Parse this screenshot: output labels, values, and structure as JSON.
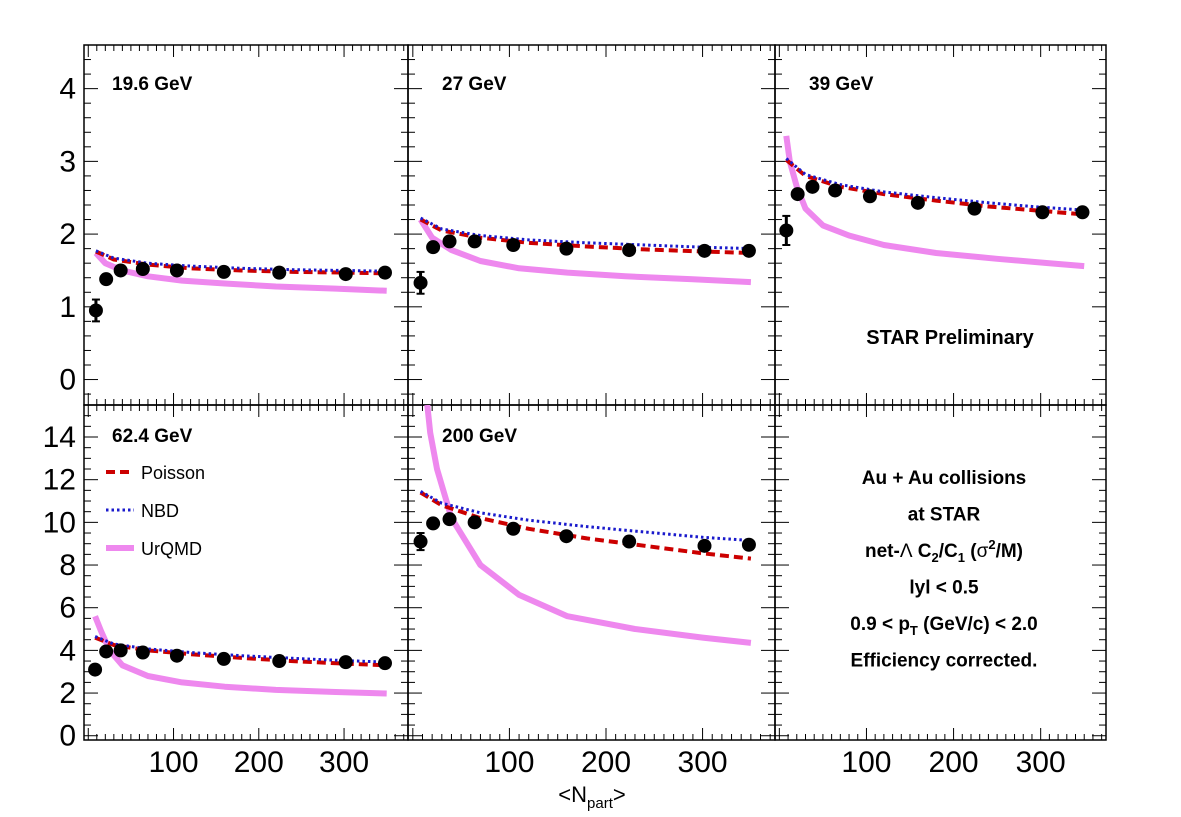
{
  "chart_data": {
    "type": "scatter",
    "xlabel": "<N_part>",
    "xlim": [
      -5,
      375
    ],
    "xticks": [
      100,
      200,
      300
    ],
    "preliminary_label": "STAR Preliminary",
    "legend": {
      "placement": "left, bottom-left panel",
      "entries": [
        {
          "key": "poisson",
          "name": "Poisson",
          "style": "dashed",
          "color": "#cc0000"
        },
        {
          "key": "nbd",
          "name": "NBD",
          "style": "dotted",
          "color": "#1a1acc"
        },
        {
          "key": "urqmd",
          "name": "UrQMD",
          "style": "solid-thick",
          "color": "#ee88ee"
        }
      ]
    },
    "info_lines": [
      {
        "text": "Au + Au collisions"
      },
      {
        "text": "at STAR"
      },
      {
        "pre": "net-",
        "greek": "Λ",
        "text": " C",
        "sub1": "2",
        "mid": "/C",
        "sub2": "1",
        "pre2": " (",
        "greek2": "σ",
        "sup": "2",
        "post": "/M)"
      },
      {
        "text": "lyl < 0.5"
      },
      {
        "pre": "0.9 < p",
        "sub1": "T",
        "post": " (GeV/c) < 2.0"
      },
      {
        "text": "Efficiency corrected."
      }
    ],
    "row_ylims": [
      [
        -0.35,
        4.6
      ],
      [
        -0.2,
        15.5
      ]
    ],
    "row_yticks": [
      [
        0,
        1,
        2,
        3,
        4
      ],
      [
        0,
        2,
        4,
        6,
        8,
        10,
        12,
        14
      ]
    ],
    "colors": {
      "data": "#000000",
      "poisson": "#cc0000",
      "nbd": "#1a1acc",
      "urqmd": "#ee88ee"
    },
    "panels": [
      {
        "label": "19.6 GeV",
        "row": 0,
        "col": 0,
        "data": {
          "x": [
            9,
            21,
            38,
            64,
            104,
            159,
            224,
            302,
            348
          ],
          "y": [
            0.95,
            1.38,
            1.5,
            1.52,
            1.5,
            1.48,
            1.47,
            1.45,
            1.47
          ],
          "yerr": [
            0.15,
            0.04,
            0.04,
            0.03,
            0.03,
            0.03,
            0.03,
            0.03,
            0.03
          ]
        },
        "poisson": {
          "x": [
            9,
            30,
            70,
            120,
            180,
            240,
            300,
            350
          ],
          "y": [
            1.76,
            1.65,
            1.58,
            1.53,
            1.5,
            1.48,
            1.47,
            1.46
          ]
        },
        "nbd": {
          "x": [
            9,
            30,
            70,
            120,
            180,
            240,
            300,
            350
          ],
          "y": [
            1.77,
            1.67,
            1.6,
            1.56,
            1.53,
            1.51,
            1.5,
            1.49
          ]
        },
        "urqmd": {
          "x": [
            9,
            20,
            40,
            70,
            110,
            160,
            220,
            290,
            350
          ],
          "y": [
            1.74,
            1.6,
            1.5,
            1.42,
            1.36,
            1.32,
            1.28,
            1.25,
            1.22
          ]
        }
      },
      {
        "label": "27 GeV",
        "row": 0,
        "col": 1,
        "data": {
          "x": [
            8,
            21,
            38,
            64,
            104,
            159,
            224,
            302,
            348
          ],
          "y": [
            1.33,
            1.82,
            1.9,
            1.9,
            1.85,
            1.8,
            1.78,
            1.77,
            1.77
          ],
          "yerr": [
            0.15,
            0.05,
            0.04,
            0.04,
            0.03,
            0.03,
            0.03,
            0.03,
            0.03
          ]
        },
        "poisson": {
          "x": [
            8,
            30,
            70,
            120,
            180,
            240,
            300,
            350
          ],
          "y": [
            2.2,
            2.05,
            1.95,
            1.88,
            1.83,
            1.79,
            1.76,
            1.74
          ]
        },
        "nbd": {
          "x": [
            8,
            30,
            70,
            120,
            180,
            240,
            300,
            350
          ],
          "y": [
            2.22,
            2.07,
            1.98,
            1.92,
            1.88,
            1.85,
            1.82,
            1.8
          ]
        },
        "urqmd": {
          "x": [
            8,
            20,
            40,
            70,
            110,
            160,
            220,
            290,
            350
          ],
          "y": [
            2.2,
            1.95,
            1.78,
            1.63,
            1.53,
            1.47,
            1.42,
            1.38,
            1.34
          ]
        }
      },
      {
        "label": "39 GeV",
        "row": 0,
        "col": 2,
        "data": {
          "x": [
            8,
            21,
            38,
            64,
            104,
            159,
            224,
            302,
            348
          ],
          "y": [
            2.05,
            2.55,
            2.65,
            2.6,
            2.52,
            2.43,
            2.35,
            2.3,
            2.3
          ],
          "yerr": [
            0.2,
            0.06,
            0.05,
            0.05,
            0.04,
            0.04,
            0.04,
            0.04,
            0.04
          ]
        },
        "poisson": {
          "x": [
            8,
            30,
            70,
            120,
            180,
            240,
            300,
            350
          ],
          "y": [
            3.02,
            2.8,
            2.65,
            2.55,
            2.46,
            2.38,
            2.32,
            2.27
          ]
        },
        "nbd": {
          "x": [
            8,
            30,
            70,
            120,
            180,
            240,
            300,
            350
          ],
          "y": [
            3.04,
            2.82,
            2.68,
            2.58,
            2.5,
            2.43,
            2.37,
            2.33
          ]
        },
        "urqmd": {
          "x": [
            8,
            12,
            20,
            30,
            50,
            80,
            120,
            180,
            250,
            310,
            350
          ],
          "y": [
            3.35,
            3.0,
            2.65,
            2.35,
            2.12,
            1.98,
            1.85,
            1.74,
            1.66,
            1.6,
            1.56
          ]
        }
      },
      {
        "label": "62.4 GeV",
        "row": 1,
        "col": 0,
        "data": {
          "x": [
            8,
            21,
            38,
            64,
            104,
            159,
            224,
            302,
            348
          ],
          "y": [
            3.1,
            3.95,
            4.0,
            3.9,
            3.75,
            3.6,
            3.5,
            3.45,
            3.4
          ],
          "yerr": [
            0.2,
            0.1,
            0.1,
            0.09,
            0.08,
            0.08,
            0.08,
            0.08,
            0.08
          ]
        },
        "poisson": {
          "x": [
            8,
            30,
            70,
            120,
            180,
            240,
            300,
            350
          ],
          "y": [
            4.6,
            4.25,
            4.0,
            3.82,
            3.65,
            3.5,
            3.38,
            3.3
          ]
        },
        "nbd": {
          "x": [
            8,
            30,
            70,
            120,
            180,
            240,
            300,
            350
          ],
          "y": [
            4.65,
            4.3,
            4.07,
            3.9,
            3.75,
            3.63,
            3.52,
            3.45
          ]
        },
        "urqmd": {
          "x": [
            8,
            15,
            25,
            40,
            70,
            110,
            160,
            220,
            290,
            350
          ],
          "y": [
            5.6,
            4.9,
            4.0,
            3.3,
            2.8,
            2.5,
            2.3,
            2.15,
            2.05,
            1.98
          ]
        }
      },
      {
        "label": "200 GeV",
        "row": 1,
        "col": 1,
        "data": {
          "x": [
            8,
            21,
            38,
            64,
            104,
            159,
            224,
            302,
            348
          ],
          "y": [
            9.1,
            9.95,
            10.15,
            10.0,
            9.7,
            9.35,
            9.1,
            8.9,
            8.95
          ],
          "yerr": [
            0.4,
            0.2,
            0.18,
            0.17,
            0.15,
            0.14,
            0.14,
            0.14,
            0.14
          ]
        },
        "poisson": {
          "x": [
            8,
            30,
            70,
            120,
            180,
            240,
            300,
            350
          ],
          "y": [
            11.4,
            10.8,
            10.2,
            9.7,
            9.25,
            8.9,
            8.55,
            8.3
          ]
        },
        "nbd": {
          "x": [
            8,
            30,
            70,
            120,
            180,
            240,
            300,
            350
          ],
          "y": [
            11.45,
            10.9,
            10.45,
            10.1,
            9.8,
            9.55,
            9.3,
            9.15
          ]
        },
        "urqmd": {
          "x": [
            15,
            18,
            25,
            40,
            70,
            110,
            160,
            230,
            300,
            350
          ],
          "y": [
            15.5,
            14.2,
            12.5,
            10.2,
            8.0,
            6.6,
            5.6,
            5.0,
            4.6,
            4.35
          ]
        }
      }
    ]
  }
}
